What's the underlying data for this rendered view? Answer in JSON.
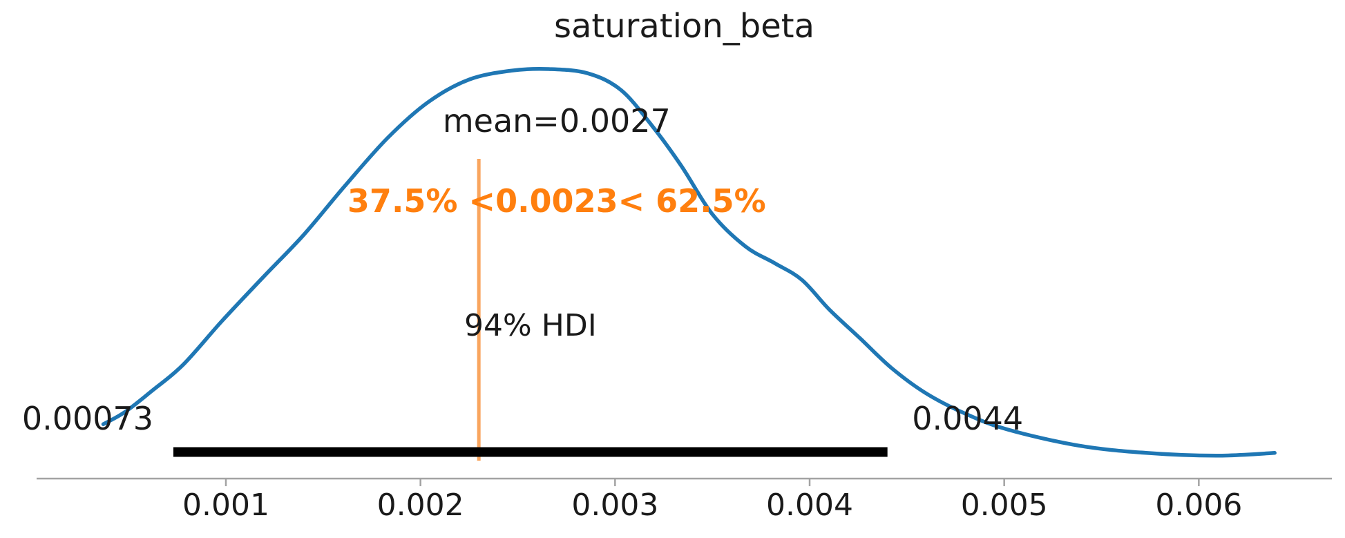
{
  "title": "saturation_beta",
  "labels": {
    "mean": "mean=0.0027",
    "ref_val": "37.5% <0.0023< 62.5%",
    "hdi_prob": "94% HDI",
    "hdi_lo": "0.00073",
    "hdi_hi": "0.0044"
  },
  "colors": {
    "curve": "#1f77b4",
    "ref_line": "#f9a55e",
    "ref_text": "#ff7f0e",
    "hdi_bar": "#000000",
    "axis": "#a3a3a3",
    "text": "#1a1a1a"
  },
  "chart_data": {
    "type": "line",
    "subtype": "posterior-kde",
    "title": "saturation_beta",
    "xlabel": "",
    "ylabel": "",
    "xlim": [
      3e-05,
      0.00668
    ],
    "grid": false,
    "legend": "none",
    "xticks": {
      "values": [
        0.001,
        0.002,
        0.003,
        0.004,
        0.005,
        0.006
      ],
      "labels": [
        "0.001",
        "0.002",
        "0.003",
        "0.004",
        "0.005",
        "0.006"
      ]
    },
    "mean": 0.0027,
    "ref_val": 0.0023,
    "ref_val_pct_below": 37.5,
    "ref_val_pct_above": 62.5,
    "hdi": {
      "prob": 0.94,
      "lo": 0.00073,
      "hi": 0.0044
    },
    "series": [
      {
        "name": "posterior_kde",
        "x": [
          0.00037,
          0.00048,
          0.00062,
          0.00078,
          0.00098,
          0.00119,
          0.0014,
          0.00161,
          0.00183,
          0.00204,
          0.00225,
          0.00247,
          0.00266,
          0.00286,
          0.00303,
          0.00319,
          0.00334,
          0.0035,
          0.00367,
          0.00382,
          0.00396,
          0.0041,
          0.00426,
          0.00442,
          0.0046,
          0.00481,
          0.00502,
          0.00538,
          0.00573,
          0.00609,
          0.00639
        ],
        "density_norm": [
          0.085,
          0.116,
          0.171,
          0.238,
          0.351,
          0.463,
          0.573,
          0.698,
          0.822,
          0.915,
          0.973,
          0.996,
          1.0,
          0.989,
          0.946,
          0.854,
          0.751,
          0.626,
          0.543,
          0.5,
          0.457,
          0.381,
          0.306,
          0.23,
          0.164,
          0.11,
          0.071,
          0.03,
          0.011,
          0.004,
          0.011
        ]
      }
    ]
  }
}
